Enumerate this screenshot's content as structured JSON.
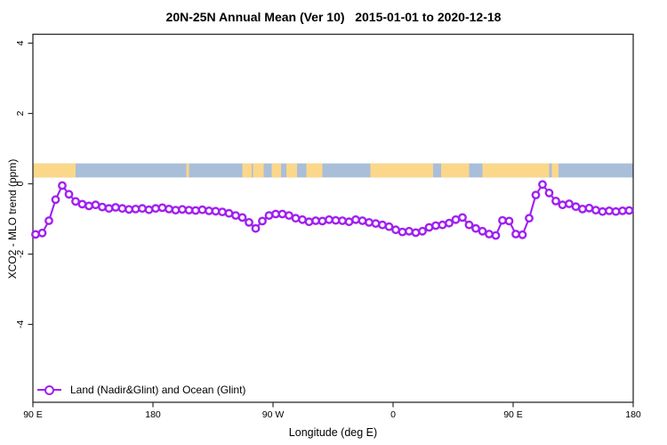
{
  "chart_data": {
    "type": "line",
    "title": "20N-25N Annual Mean (Ver 10)   2015-01-01 to 2020-12-18",
    "xlabel": "Longitude (deg E)",
    "ylabel": "XCO2 - MLO trend (ppm)",
    "axis_color": "#2b2b2b",
    "grid": false,
    "xlim_lon": [
      90,
      540
    ],
    "ylim": [
      -6.2,
      4.3
    ],
    "xticks": [
      {
        "lon": 90,
        "label": "90 E"
      },
      {
        "lon": 180,
        "label": "180"
      },
      {
        "lon": 270,
        "label": "90 W"
      },
      {
        "lon": 360,
        "label": "0"
      },
      {
        "lon": 450,
        "label": "90 E"
      },
      {
        "lon": 540,
        "label": "180"
      }
    ],
    "yticks": [
      {
        "v": 4,
        "label": "4"
      },
      {
        "v": 2,
        "label": "2"
      },
      {
        "v": 0,
        "label": "0"
      },
      {
        "v": -2,
        "label": "-2"
      },
      {
        "v": -4,
        "label": "-4"
      }
    ],
    "map_strip": {
      "description": "land/ocean longitude strip drawn inside plot just above zero line",
      "ocean_color": "#A9BED9",
      "land_color": "#FBD78A",
      "y_range_ppm": [
        0.18,
        0.58
      ],
      "land_segments_lon": [
        [
          90,
          122
        ],
        [
          205,
          207
        ],
        [
          247,
          254
        ],
        [
          255,
          263
        ],
        [
          269,
          276
        ],
        [
          280,
          288
        ],
        [
          295,
          307
        ],
        [
          343,
          390
        ],
        [
          396,
          417
        ],
        [
          427,
          477
        ],
        [
          479,
          484
        ]
      ]
    },
    "series": [
      {
        "name": "Land (Nadir&Glint) and Ocean (Glint)",
        "color": "#A020F0",
        "marker": "open-circle",
        "lon_start": 92,
        "lon_step": 5,
        "values": [
          -1.44,
          -1.4,
          -1.05,
          -0.45,
          -0.05,
          -0.3,
          -0.5,
          -0.58,
          -0.63,
          -0.6,
          -0.66,
          -0.7,
          -0.67,
          -0.7,
          -0.73,
          -0.72,
          -0.7,
          -0.74,
          -0.7,
          -0.68,
          -0.72,
          -0.75,
          -0.73,
          -0.75,
          -0.76,
          -0.74,
          -0.77,
          -0.78,
          -0.8,
          -0.84,
          -0.9,
          -0.96,
          -1.1,
          -1.27,
          -1.06,
          -0.9,
          -0.86,
          -0.86,
          -0.9,
          -0.98,
          -1.02,
          -1.08,
          -1.05,
          -1.06,
          -1.02,
          -1.04,
          -1.05,
          -1.08,
          -1.02,
          -1.05,
          -1.1,
          -1.13,
          -1.17,
          -1.22,
          -1.31,
          -1.37,
          -1.35,
          -1.39,
          -1.35,
          -1.24,
          -1.19,
          -1.17,
          -1.12,
          -1.02,
          -0.96,
          -1.17,
          -1.27,
          -1.35,
          -1.43,
          -1.47,
          -1.04,
          -1.06,
          -1.43,
          -1.45,
          -0.98,
          -0.32,
          -0.02,
          -0.26,
          -0.49,
          -0.6,
          -0.57,
          -0.65,
          -0.72,
          -0.69,
          -0.75,
          -0.79,
          -0.77,
          -0.79,
          -0.77,
          -0.76
        ]
      }
    ],
    "legend_position": "bottom-left-inside"
  },
  "legend": {
    "label": "Land (Nadir&Glint) and Ocean (Glint)",
    "marker_color": "#A020F0"
  }
}
